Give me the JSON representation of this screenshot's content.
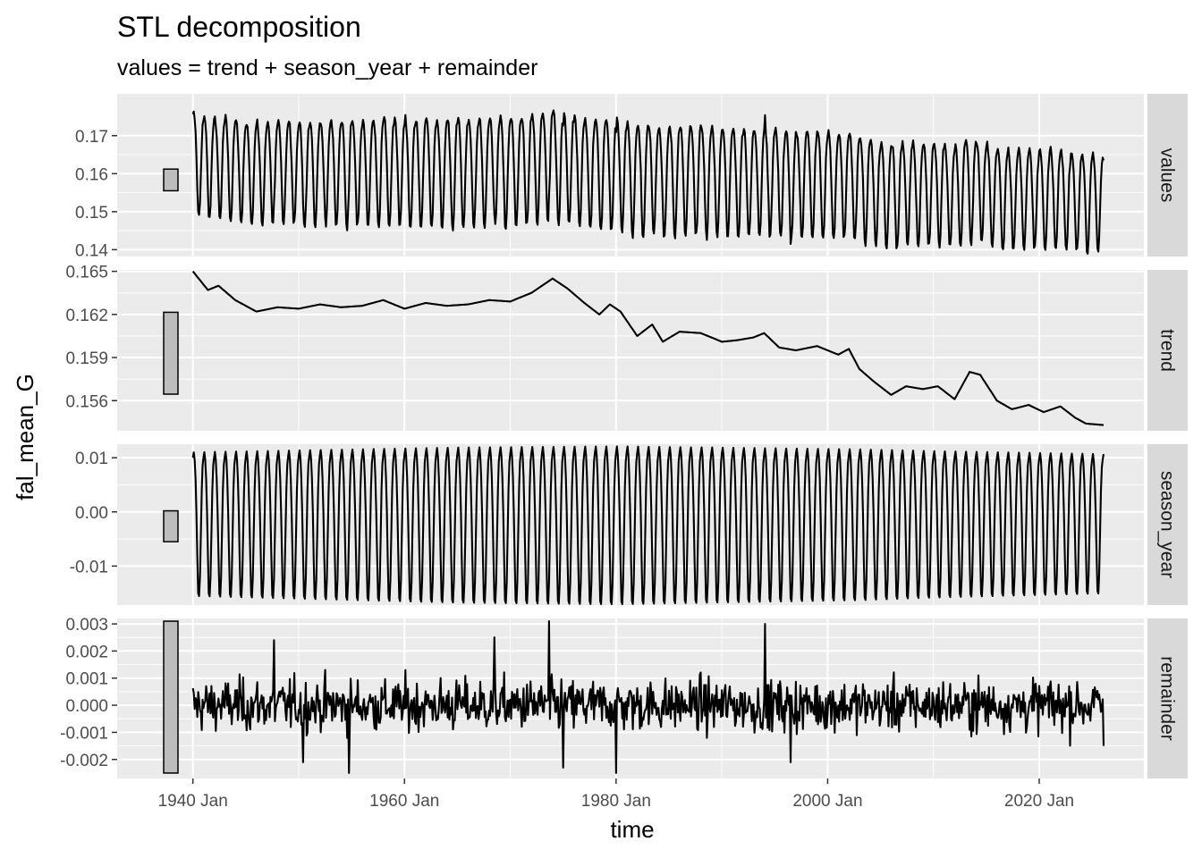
{
  "chart_data": {
    "type": "line",
    "title": "STL decomposition",
    "subtitle": "values = trend + season_year + remainder",
    "xlabel": "time",
    "ylabel": "fal_mean_G",
    "x_range": [
      "1940-01",
      "2026-02"
    ],
    "x_ticks": [
      "1940 Jan",
      "1960 Jan",
      "1980 Jan",
      "2000 Jan",
      "2020 Jan"
    ],
    "grid": true,
    "colors": {
      "panel_bg": "#ebebeb",
      "grid_major": "#ffffff",
      "strip_bg": "#d9d9d9",
      "line": "#000000",
      "scale_bar": "#bdbdbd",
      "tick_text": "#4d4d4d"
    },
    "panels": [
      {
        "name": "values",
        "ylim": [
          0.1382,
          0.181
        ],
        "yticks": [
          0.14,
          0.15,
          0.16,
          0.17
        ],
        "ytick_labels": [
          "0.14",
          "0.15",
          "0.16",
          "0.17"
        ],
        "scale_bar": [
          0.1555,
          0.1612
        ],
        "trend_knots": [
          [
            "1940-01",
            0.165
          ],
          [
            "1942-06",
            0.1633
          ],
          [
            "1946-01",
            0.1623
          ],
          [
            "1955-01",
            0.1628
          ],
          [
            "1965-01",
            0.1627
          ],
          [
            "1970-01",
            0.1633
          ],
          [
            "1974-01",
            0.1646
          ],
          [
            "1976-06",
            0.163
          ],
          [
            "1979-01",
            0.1628
          ],
          [
            "1981-01",
            0.1608
          ],
          [
            "1984-01",
            0.1612
          ],
          [
            "1986-01",
            0.16
          ],
          [
            "1988-01",
            0.1607
          ],
          [
            "1992-01",
            0.1598
          ],
          [
            "1995-01",
            0.1603
          ],
          [
            "1997-01",
            0.1593
          ],
          [
            "2002-01",
            0.1593
          ],
          [
            "2004-01",
            0.1587
          ],
          [
            "2006-06",
            0.1563
          ],
          [
            "2010-01",
            0.1568
          ],
          [
            "2012-06",
            0.1562
          ],
          [
            "2013-06",
            0.158
          ],
          [
            "2016-01",
            0.1573
          ],
          [
            "2018-01",
            0.155
          ],
          [
            "2021-01",
            0.1553
          ],
          [
            "2024-01",
            0.1545
          ],
          [
            "2026-02",
            0.1543
          ]
        ],
        "seasonal_amplitude_approx": 0.0135
      },
      {
        "name": "trend",
        "ylim": [
          0.1539,
          0.1651
        ],
        "yticks": [
          0.156,
          0.159,
          0.162,
          0.165
        ],
        "ytick_labels": [
          "0.156",
          "0.159",
          "0.162",
          "0.165"
        ],
        "scale_bar": [
          0.15645,
          0.16215
        ],
        "x": [
          "1940-01",
          "1941-06",
          "1942-06",
          "1944-01",
          "1946-01",
          "1948-01",
          "1950-01",
          "1952-01",
          "1954-01",
          "1956-01",
          "1958-01",
          "1960-01",
          "1962-01",
          "1964-01",
          "1966-01",
          "1968-01",
          "1970-01",
          "1972-01",
          "1974-01",
          "1975-06",
          "1977-01",
          "1978-06",
          "1979-06",
          "1980-06",
          "1982-01",
          "1983-06",
          "1984-06",
          "1986-01",
          "1988-01",
          "1990-01",
          "1991-06",
          "1993-01",
          "1994-01",
          "1995-06",
          "1997-01",
          "1999-01",
          "2001-01",
          "2002-01",
          "2003-01",
          "2004-06",
          "2006-01",
          "2007-06",
          "2009-01",
          "2010-06",
          "2012-01",
          "2013-06",
          "2014-06",
          "2016-01",
          "2017-06",
          "2019-01",
          "2020-06",
          "2022-01",
          "2023-06",
          "2024-06",
          "2026-02"
        ],
        "values": [
          0.165,
          0.1637,
          0.164,
          0.163,
          0.1622,
          0.1625,
          0.1624,
          0.1627,
          0.1625,
          0.1626,
          0.163,
          0.1624,
          0.1628,
          0.1626,
          0.1627,
          0.163,
          0.1629,
          0.1635,
          0.1645,
          0.1638,
          0.1628,
          0.162,
          0.1627,
          0.1622,
          0.1605,
          0.1613,
          0.1601,
          0.1608,
          0.1607,
          0.1601,
          0.1602,
          0.1604,
          0.1607,
          0.1597,
          0.1595,
          0.1598,
          0.1592,
          0.1596,
          0.1582,
          0.1573,
          0.1564,
          0.157,
          0.1568,
          0.157,
          0.1561,
          0.158,
          0.1578,
          0.156,
          0.1554,
          0.1557,
          0.1552,
          0.1556,
          0.1548,
          0.1544,
          0.1543
        ]
      },
      {
        "name": "season_year",
        "ylim": [
          -0.0172,
          0.0125
        ],
        "yticks": [
          -0.01,
          0.0,
          0.01
        ],
        "ytick_labels": [
          "-0.01",
          "0.00",
          "0.01"
        ],
        "scale_bar": [
          -0.0055,
          0.0002
        ],
        "monthly_pattern": [
          0.01,
          0.011,
          0.0095,
          0.006,
          0.0,
          -0.008,
          -0.015,
          -0.0155,
          -0.012,
          -0.004,
          0.004,
          0.0085
        ],
        "amplitude_by_year": [
          [
            "1940",
            1.0
          ],
          [
            "1965",
            1.08
          ],
          [
            "1980",
            1.1
          ],
          [
            "2003",
            1.05
          ],
          [
            "2010",
            1.02
          ],
          [
            "2026",
            0.97
          ]
        ]
      },
      {
        "name": "remainder",
        "ylim": [
          -0.0027,
          0.0032
        ],
        "yticks": [
          -0.002,
          -0.001,
          0.0,
          0.001,
          0.002,
          0.003
        ],
        "ytick_labels": [
          "-0.002",
          "-0.001",
          "0.000",
          "0.001",
          "0.002",
          "0.003"
        ],
        "scale_bar": [
          -0.0025,
          0.0031
        ],
        "noise_sd_approx": 0.0008,
        "notable_points": [
          [
            "1947-09",
            0.0024
          ],
          [
            "1950-06",
            -0.0021
          ],
          [
            "1954-10",
            -0.0025
          ],
          [
            "1968-07",
            0.0025
          ],
          [
            "1973-09",
            0.0031
          ],
          [
            "1975-01",
            -0.0023
          ],
          [
            "1980-01",
            -0.0025
          ],
          [
            "1994-02",
            0.003
          ],
          [
            "1996-07",
            -0.0021
          ],
          [
            "2026-02",
            -0.0015
          ]
        ]
      }
    ]
  }
}
